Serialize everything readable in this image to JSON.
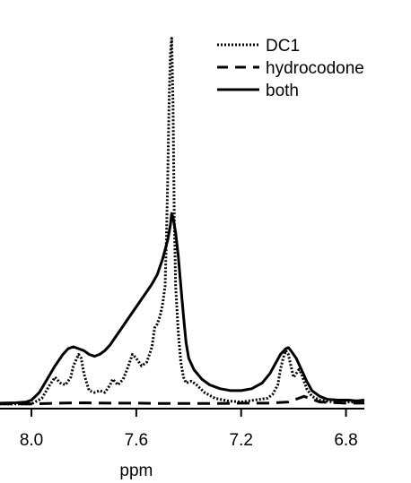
{
  "chart_data": {
    "type": "line",
    "title": "",
    "xlabel": "ppm",
    "ylabel": "",
    "xlim": [
      8.12,
      6.73
    ],
    "x_reversed": true,
    "ylim": [
      0,
      1
    ],
    "y_axis_visible": false,
    "grid": false,
    "legend_position": "top-right",
    "x_ticks": [
      {
        "value": 8.0,
        "label": "8.0"
      },
      {
        "value": 7.6,
        "label": "7.6"
      },
      {
        "value": 7.2,
        "label": "7.2"
      },
      {
        "value": 6.8,
        "label": "6.8"
      }
    ],
    "series": [
      {
        "name": "DC1",
        "style": "dotted",
        "points": [
          [
            8.12,
            0.01
          ],
          [
            8.05,
            0.01
          ],
          [
            8.0,
            0.01
          ],
          [
            7.96,
            0.025
          ],
          [
            7.93,
            0.06
          ],
          [
            7.91,
            0.08
          ],
          [
            7.89,
            0.065
          ],
          [
            7.87,
            0.06
          ],
          [
            7.85,
            0.08
          ],
          [
            7.84,
            0.11
          ],
          [
            7.82,
            0.14
          ],
          [
            7.81,
            0.13
          ],
          [
            7.8,
            0.09
          ],
          [
            7.78,
            0.045
          ],
          [
            7.76,
            0.04
          ],
          [
            7.74,
            0.045
          ],
          [
            7.72,
            0.04
          ],
          [
            7.7,
            0.06
          ],
          [
            7.69,
            0.075
          ],
          [
            7.67,
            0.06
          ],
          [
            7.65,
            0.075
          ],
          [
            7.63,
            0.11
          ],
          [
            7.615,
            0.14
          ],
          [
            7.6,
            0.13
          ],
          [
            7.58,
            0.11
          ],
          [
            7.56,
            0.12
          ],
          [
            7.54,
            0.16
          ],
          [
            7.53,
            0.21
          ],
          [
            7.52,
            0.22
          ],
          [
            7.51,
            0.24
          ],
          [
            7.5,
            0.27
          ],
          [
            7.49,
            0.32
          ],
          [
            7.485,
            0.45
          ],
          [
            7.48,
            0.6
          ],
          [
            7.475,
            0.8
          ],
          [
            7.47,
            0.93
          ],
          [
            7.465,
            0.97
          ],
          [
            7.46,
            0.8
          ],
          [
            7.455,
            0.5
          ],
          [
            7.45,
            0.32
          ],
          [
            7.44,
            0.2
          ],
          [
            7.43,
            0.12
          ],
          [
            7.42,
            0.08
          ],
          [
            7.41,
            0.065
          ],
          [
            7.39,
            0.07
          ],
          [
            7.37,
            0.06
          ],
          [
            7.34,
            0.04
          ],
          [
            7.3,
            0.025
          ],
          [
            7.25,
            0.018
          ],
          [
            7.2,
            0.015
          ],
          [
            7.15,
            0.02
          ],
          [
            7.1,
            0.025
          ],
          [
            7.08,
            0.035
          ],
          [
            7.06,
            0.06
          ],
          [
            7.05,
            0.1
          ],
          [
            7.04,
            0.13
          ],
          [
            7.03,
            0.15
          ],
          [
            7.02,
            0.14
          ],
          [
            7.01,
            0.11
          ],
          [
            7.0,
            0.08
          ],
          [
            6.99,
            0.09
          ],
          [
            6.98,
            0.1
          ],
          [
            6.97,
            0.09
          ],
          [
            6.96,
            0.07
          ],
          [
            6.95,
            0.05
          ],
          [
            6.93,
            0.03
          ],
          [
            6.9,
            0.02
          ],
          [
            6.85,
            0.015
          ],
          [
            6.8,
            0.015
          ],
          [
            6.75,
            0.015
          ],
          [
            6.73,
            0.015
          ]
        ]
      },
      {
        "name": "hydrocodone",
        "style": "dashed",
        "points": [
          [
            8.12,
            0.01
          ],
          [
            8.0,
            0.01
          ],
          [
            7.9,
            0.012
          ],
          [
            7.8,
            0.013
          ],
          [
            7.7,
            0.012
          ],
          [
            7.6,
            0.012
          ],
          [
            7.5,
            0.011
          ],
          [
            7.4,
            0.011
          ],
          [
            7.3,
            0.011
          ],
          [
            7.2,
            0.012
          ],
          [
            7.1,
            0.012
          ],
          [
            7.02,
            0.015
          ],
          [
            6.98,
            0.025
          ],
          [
            6.96,
            0.03
          ],
          [
            6.94,
            0.025
          ],
          [
            6.9,
            0.015
          ],
          [
            6.8,
            0.012
          ],
          [
            6.73,
            0.012
          ]
        ]
      },
      {
        "name": "both",
        "style": "solid",
        "points": [
          [
            8.12,
            0.012
          ],
          [
            8.06,
            0.013
          ],
          [
            8.02,
            0.015
          ],
          [
            8.0,
            0.02
          ],
          [
            7.97,
            0.04
          ],
          [
            7.94,
            0.075
          ],
          [
            7.91,
            0.11
          ],
          [
            7.88,
            0.14
          ],
          [
            7.86,
            0.155
          ],
          [
            7.84,
            0.16
          ],
          [
            7.82,
            0.155
          ],
          [
            7.8,
            0.15
          ],
          [
            7.78,
            0.14
          ],
          [
            7.76,
            0.135
          ],
          [
            7.74,
            0.14
          ],
          [
            7.72,
            0.15
          ],
          [
            7.7,
            0.165
          ],
          [
            7.68,
            0.185
          ],
          [
            7.66,
            0.205
          ],
          [
            7.64,
            0.225
          ],
          [
            7.62,
            0.245
          ],
          [
            7.6,
            0.265
          ],
          [
            7.58,
            0.285
          ],
          [
            7.56,
            0.305
          ],
          [
            7.54,
            0.325
          ],
          [
            7.52,
            0.35
          ],
          [
            7.5,
            0.39
          ],
          [
            7.48,
            0.44
          ],
          [
            7.47,
            0.48
          ],
          [
            7.465,
            0.51
          ],
          [
            7.46,
            0.5
          ],
          [
            7.45,
            0.46
          ],
          [
            7.44,
            0.4
          ],
          [
            7.43,
            0.32
          ],
          [
            7.42,
            0.24
          ],
          [
            7.41,
            0.17
          ],
          [
            7.4,
            0.13
          ],
          [
            7.38,
            0.1
          ],
          [
            7.35,
            0.075
          ],
          [
            7.32,
            0.06
          ],
          [
            7.28,
            0.05
          ],
          [
            7.24,
            0.045
          ],
          [
            7.2,
            0.045
          ],
          [
            7.16,
            0.05
          ],
          [
            7.12,
            0.065
          ],
          [
            7.09,
            0.09
          ],
          [
            7.07,
            0.115
          ],
          [
            7.05,
            0.14
          ],
          [
            7.03,
            0.155
          ],
          [
            7.02,
            0.158
          ],
          [
            7.01,
            0.15
          ],
          [
            6.99,
            0.13
          ],
          [
            6.97,
            0.1
          ],
          [
            6.95,
            0.07
          ],
          [
            6.93,
            0.045
          ],
          [
            6.9,
            0.03
          ],
          [
            6.87,
            0.022
          ],
          [
            6.83,
            0.02
          ],
          [
            6.79,
            0.02
          ],
          [
            6.76,
            0.018
          ],
          [
            6.73,
            0.02
          ]
        ]
      }
    ]
  }
}
